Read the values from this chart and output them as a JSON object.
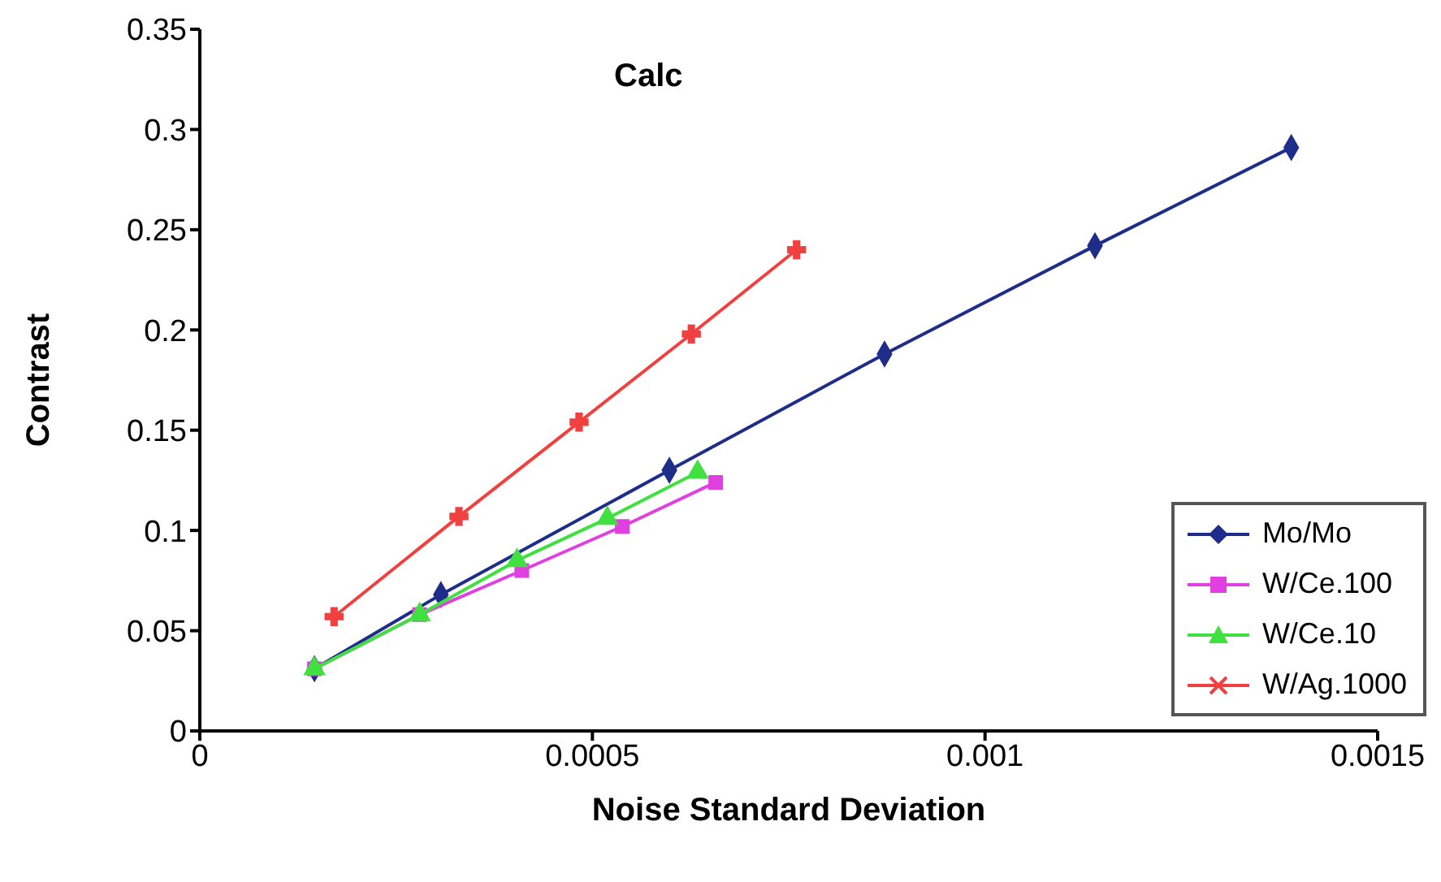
{
  "chart_data": {
    "type": "line",
    "title": "Calc",
    "xlabel": "Noise Standard Deviation",
    "ylabel": "Contrast",
    "xlim": [
      0,
      0.0015
    ],
    "xticks": [
      0,
      0.0005,
      0.001,
      0.0015
    ],
    "ylim": [
      0,
      0.35
    ],
    "yticks": [
      0,
      0.05,
      0.1,
      0.15,
      0.2,
      0.25,
      0.3,
      0.35
    ],
    "grid": false,
    "legend": "bottom right",
    "line_style": "solid",
    "series": [
      {
        "name": "Mo/Mo",
        "color": "#1f2d8a",
        "marker": "diamond",
        "x": [
          0.000146,
          0.000307,
          0.000598,
          0.000872,
          0.00114,
          0.00139
        ],
        "values": [
          0.031,
          0.068,
          0.13,
          0.188,
          0.242,
          0.291
        ]
      },
      {
        "name": "W/Ce.100",
        "color": "#e040e0",
        "marker": "square",
        "x": [
          0.000146,
          0.00028,
          0.00041,
          0.000538,
          0.000657
        ],
        "values": [
          0.031,
          0.058,
          0.08,
          0.102,
          0.124
        ]
      },
      {
        "name": "W/Ce.10",
        "color": "#40e040",
        "marker": "triangle",
        "x": [
          0.000146,
          0.00028,
          0.000404,
          0.000519,
          0.000634
        ],
        "values": [
          0.031,
          0.058,
          0.085,
          0.106,
          0.129
        ]
      },
      {
        "name": "W/Ag.1000",
        "color": "#f04040",
        "marker": "cross",
        "x": [
          0.000171,
          0.00033,
          0.000483,
          0.000626,
          0.00076
        ],
        "values": [
          0.057,
          0.107,
          0.154,
          0.198,
          0.24
        ]
      }
    ]
  }
}
